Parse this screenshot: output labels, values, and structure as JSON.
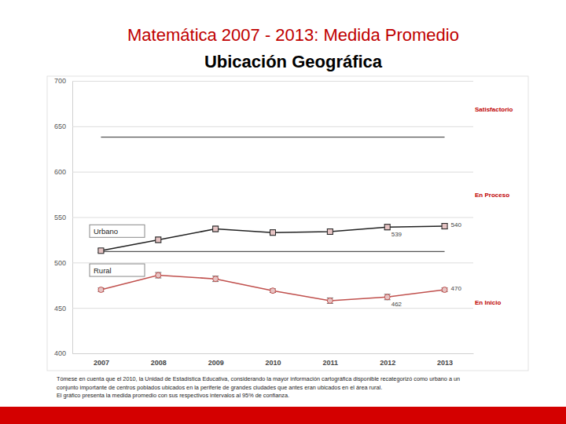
{
  "chart_data": {
    "type": "line",
    "title": "Matemática 2007 - 2013: Medida Promedio",
    "subtitle": "Ubicación Geográfica",
    "categories": [
      "2007",
      "2008",
      "2009",
      "2010",
      "2011",
      "2012",
      "2013"
    ],
    "ylim": [
      400,
      700
    ],
    "yticks": [
      400,
      450,
      500,
      550,
      600,
      650,
      700
    ],
    "grid": true,
    "series": [
      {
        "name": "Urbano",
        "color": "#222222",
        "marker": "square",
        "values": [
          513,
          525,
          537,
          533,
          534,
          539,
          540
        ],
        "errors": [
          2,
          3,
          3,
          3,
          3,
          3,
          3
        ],
        "value_labels": [
          null,
          null,
          null,
          null,
          null,
          "539",
          "540"
        ]
      },
      {
        "name": "Rural",
        "color": "#c0504d",
        "marker": "circle",
        "values": [
          470,
          486,
          482,
          469,
          458,
          462,
          470
        ],
        "errors": [
          2,
          3,
          3,
          2,
          3,
          3,
          2
        ],
        "value_labels": [
          null,
          null,
          null,
          null,
          null,
          "462",
          "470"
        ]
      }
    ],
    "thresholds": [
      512,
      638
    ],
    "levels": [
      "En Inicio",
      "En Proceso",
      "Satisfactorio"
    ],
    "notes": [
      "Tómese en cuenta que el 2010, la Unidad de Estadística Educativa, considerando la mayor información cartográfica disponible recategorizó como urbano a un",
      "conjunto importante de centros poblados ubicados en la periferie de grandes ciudades que antes eran ubicados en el área rural.",
      "El gráfico presenta la medida promedio con sus respectivos intervalos al 95% de confianza."
    ]
  }
}
